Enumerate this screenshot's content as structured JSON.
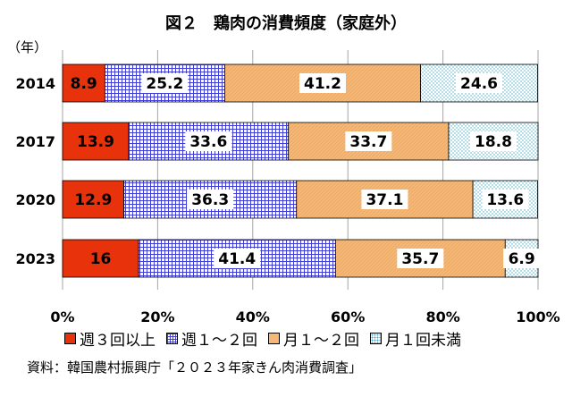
{
  "title": "図２　鶏肉の消費頻度（家庭外）",
  "unit_label": "（年）",
  "source": "資料：韓国農村振興庁「２０２３年家きん肉消費調査」",
  "colors": {
    "weekly3": "#e8320c",
    "weekly12": "#3f3fd6",
    "monthly12": "#f6b877",
    "monthly1": "#8fd0e2"
  },
  "chart_data": {
    "type": "bar",
    "orientation": "horizontal",
    "stacked": true,
    "percent": true,
    "categories": [
      "2014",
      "2017",
      "2020",
      "2023"
    ],
    "xlim": [
      0,
      100
    ],
    "x_ticks": [
      "0%",
      "20%",
      "40%",
      "60%",
      "80%",
      "100%"
    ],
    "grid": true,
    "legend_position": "bottom",
    "series": [
      {
        "name": "週３回以上",
        "values": [
          8.9,
          13.9,
          12.9,
          16
        ],
        "labels": [
          "8.9",
          "13.9",
          "12.9",
          "16"
        ]
      },
      {
        "name": "週１～２回",
        "values": [
          25.2,
          33.6,
          36.3,
          41.4
        ],
        "labels": [
          "25.2",
          "33.6",
          "36.3",
          "41.4"
        ]
      },
      {
        "name": "月１～２回",
        "values": [
          41.2,
          33.7,
          37.1,
          35.7
        ],
        "labels": [
          "41.2",
          "33.7",
          "37.1",
          "35.7"
        ]
      },
      {
        "name": "月１回未満",
        "values": [
          24.6,
          18.8,
          13.6,
          6.9
        ],
        "labels": [
          "24.6",
          "18.8",
          "13.6",
          "6.9"
        ]
      }
    ]
  }
}
